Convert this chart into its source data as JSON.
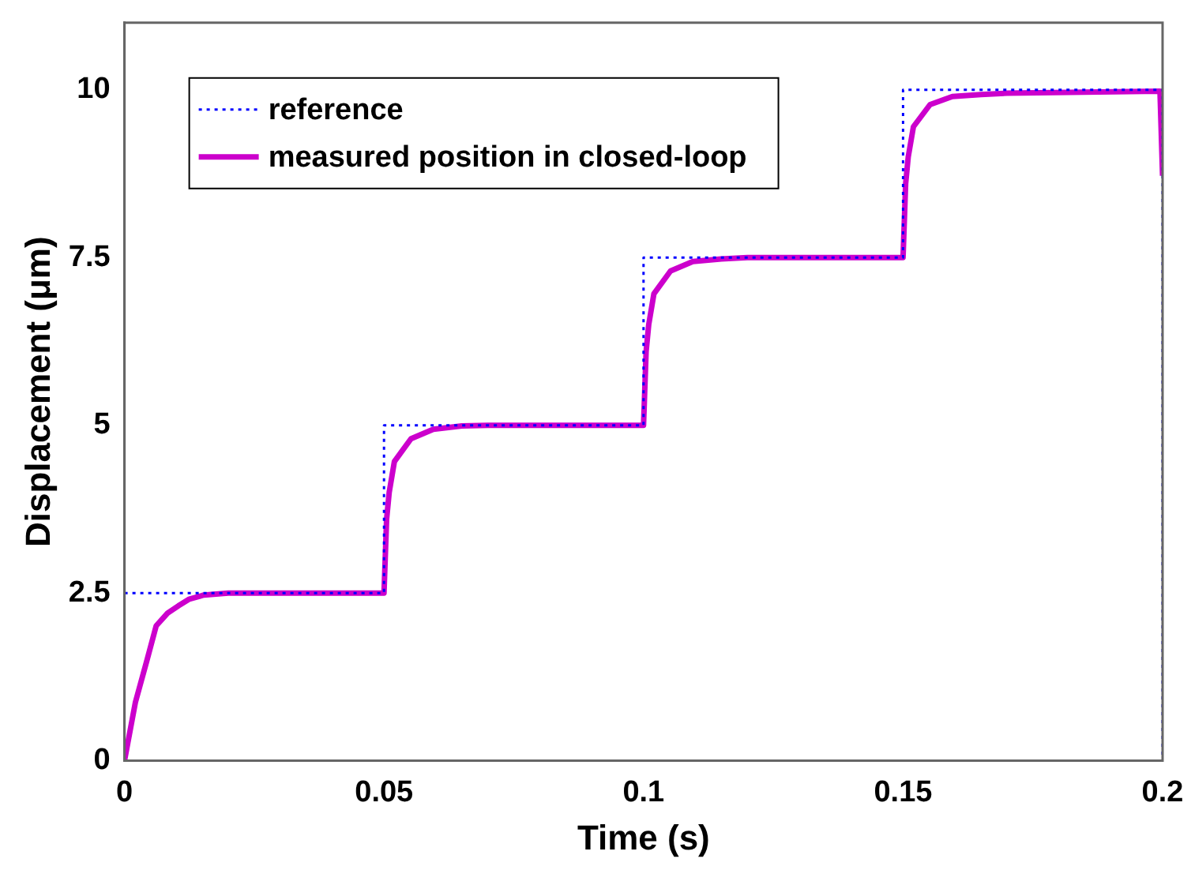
{
  "chart_data": {
    "type": "line",
    "xlabel": "Time (s)",
    "ylabel": "Displacement (μm)",
    "xlim": [
      0,
      0.2
    ],
    "xticks": [
      0,
      0.05,
      0.1,
      0.15,
      0.2
    ],
    "ylim": [
      0,
      11
    ],
    "yticks": [
      0,
      2.5,
      5,
      7.5,
      10
    ],
    "grid": false,
    "legend": "top left",
    "marker": "none",
    "series": [
      {
        "name": "reference",
        "color": "#0000ff",
        "line_style": "dotted",
        "x": [
          0,
          0.05,
          0.05,
          0.1,
          0.1,
          0.15,
          0.15,
          0.2,
          0.2
        ],
        "values": [
          2.5,
          2.5,
          5,
          5,
          7.5,
          7.5,
          10,
          10,
          0
        ]
      },
      {
        "name": "measured position in closed-loop",
        "color": "#cc00cc",
        "line_style": "solid",
        "x": [
          0,
          0.0021,
          0.0043,
          0.0061,
          0.0083,
          0.0104,
          0.0125,
          0.0153,
          0.02,
          0.05,
          0.0505,
          0.051,
          0.052,
          0.0552,
          0.0595,
          0.065,
          0.07,
          0.1,
          0.1005,
          0.101,
          0.102,
          0.1052,
          0.1095,
          0.115,
          0.12,
          0.15,
          0.1505,
          0.151,
          0.152,
          0.1552,
          0.1595,
          0.165,
          0.17,
          0.1995,
          0.2
        ],
        "values": [
          0,
          0.87,
          1.49,
          2.01,
          2.2,
          2.31,
          2.41,
          2.47,
          2.5,
          2.5,
          3.6,
          4.0,
          4.46,
          4.8,
          4.94,
          4.99,
          5.0,
          5.0,
          6.1,
          6.5,
          6.96,
          7.3,
          7.44,
          7.48,
          7.5,
          7.5,
          8.6,
          9.0,
          9.45,
          9.78,
          9.9,
          9.93,
          9.95,
          9.98,
          8.72
        ]
      }
    ]
  }
}
